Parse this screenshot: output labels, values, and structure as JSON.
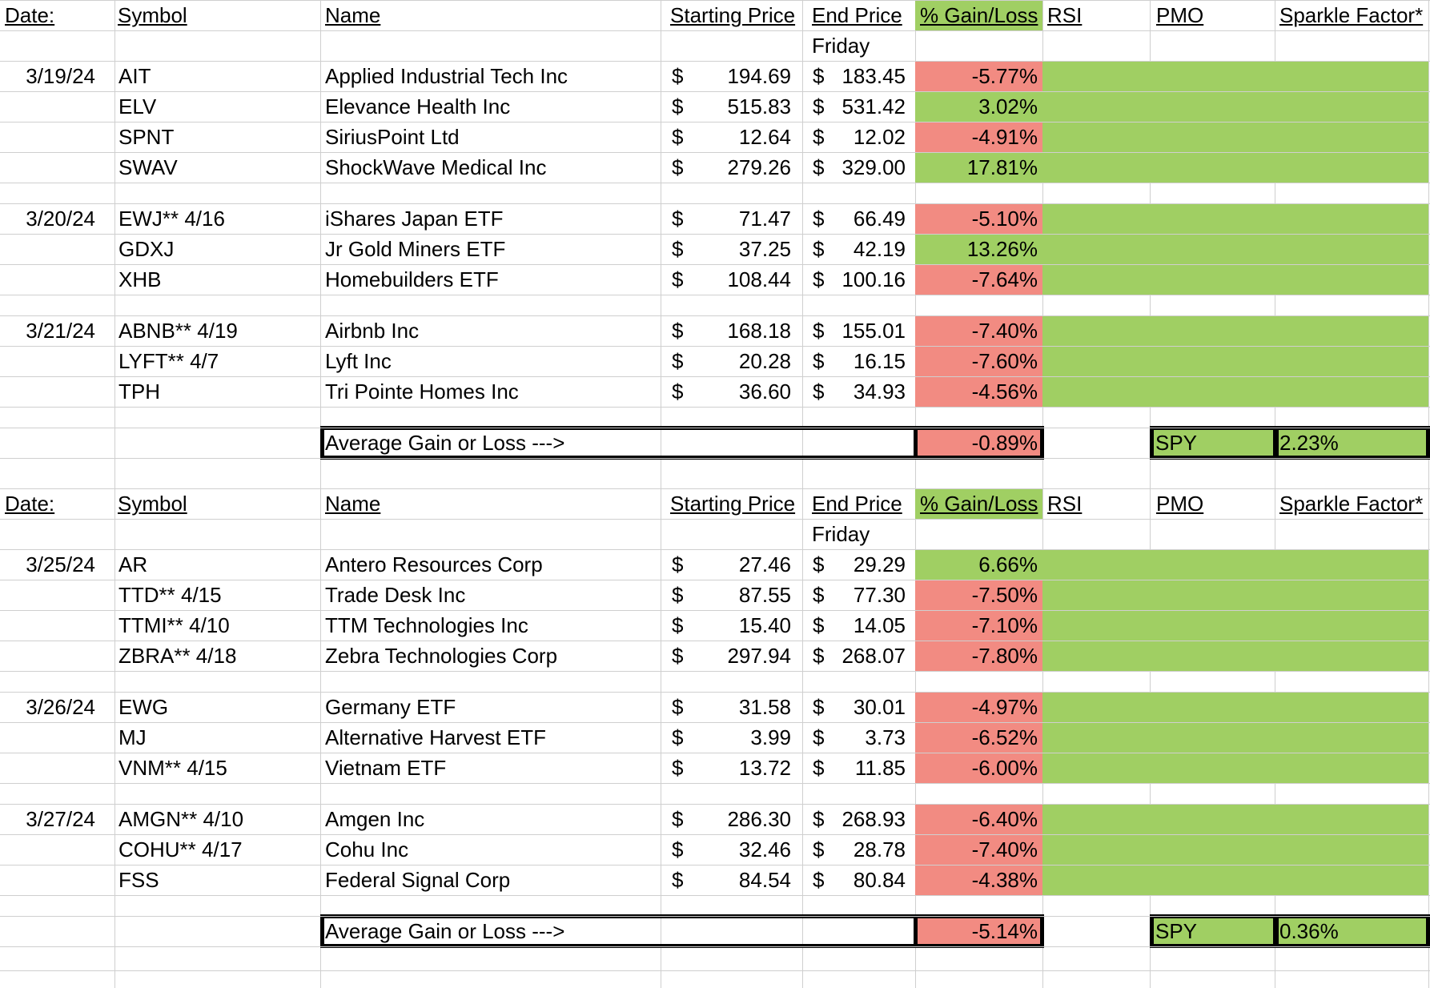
{
  "colors": {
    "loss": "#f28b82",
    "gain": "#a0cf63",
    "grid": "#cfcfcf"
  },
  "headers": {
    "date": "Date:",
    "symbol": "Symbol",
    "name": "Name",
    "start": "Starting Price",
    "end": "End Price",
    "pct": "% Gain/Loss",
    "rsi": "RSI",
    "pmo": "PMO",
    "sparkle": "Sparkle Factor*",
    "sub_end": "Friday"
  },
  "currency": "$",
  "sections": [
    {
      "groups": [
        {
          "date": "3/19/24",
          "rows": [
            {
              "symbol": "AIT",
              "name": "Applied Industrial Tech Inc",
              "start": "194.69",
              "end": "183.45",
              "pct": "-5.77%",
              "gain": false
            },
            {
              "symbol": "ELV",
              "name": "Elevance Health Inc",
              "start": "515.83",
              "end": "531.42",
              "pct": "3.02%",
              "gain": true
            },
            {
              "symbol": "SPNT",
              "name": "SiriusPoint Ltd",
              "start": "12.64",
              "end": "12.02",
              "pct": "-4.91%",
              "gain": false
            },
            {
              "symbol": "SWAV",
              "name": "ShockWave Medical Inc",
              "start": "279.26",
              "end": "329.00",
              "pct": "17.81%",
              "gain": true
            }
          ]
        },
        {
          "date": "3/20/24",
          "rows": [
            {
              "symbol": "EWJ** 4/16",
              "name": "iShares Japan ETF",
              "start": "71.47",
              "end": "66.49",
              "pct": "-5.10%",
              "gain": false
            },
            {
              "symbol": "GDXJ",
              "name": "Jr Gold Miners ETF",
              "start": "37.25",
              "end": "42.19",
              "pct": "13.26%",
              "gain": true
            },
            {
              "symbol": "XHB",
              "name": "Homebuilders ETF",
              "start": "108.44",
              "end": "100.16",
              "pct": "-7.64%",
              "gain": false
            }
          ]
        },
        {
          "date": "3/21/24",
          "rows": [
            {
              "symbol": "ABNB** 4/19",
              "name": "Airbnb Inc",
              "start": "168.18",
              "end": "155.01",
              "pct": "-7.40%",
              "gain": false
            },
            {
              "symbol": "LYFT** 4/7",
              "name": "Lyft Inc",
              "start": "20.28",
              "end": "16.15",
              "pct": "-7.60%",
              "gain": false
            },
            {
              "symbol": "TPH",
              "name": "Tri Pointe Homes Inc",
              "start": "36.60",
              "end": "34.93",
              "pct": "-4.56%",
              "gain": false
            }
          ]
        }
      ],
      "summary": {
        "label": "Average Gain or Loss --->",
        "avg": "-0.89%",
        "spy_label": "SPY",
        "spy_value": "2.23%"
      }
    },
    {
      "groups": [
        {
          "date": "3/25/24",
          "rows": [
            {
              "symbol": "AR",
              "name": "Antero Resources Corp",
              "start": "27.46",
              "end": "29.29",
              "pct": "6.66%",
              "gain": true
            },
            {
              "symbol": "TTD** 4/15",
              "name": "Trade Desk Inc",
              "start": "87.55",
              "end": "77.30",
              "pct": "-7.50%",
              "gain": false
            },
            {
              "symbol": "TTMI** 4/10",
              "name": "TTM Technologies Inc",
              "start": "15.40",
              "end": "14.05",
              "pct": "-7.10%",
              "gain": false
            },
            {
              "symbol": "ZBRA** 4/18",
              "name": "Zebra Technologies Corp",
              "start": "297.94",
              "end": "268.07",
              "pct": "-7.80%",
              "gain": false
            }
          ]
        },
        {
          "date": "3/26/24",
          "rows": [
            {
              "symbol": "EWG",
              "name": "Germany ETF",
              "start": "31.58",
              "end": "30.01",
              "pct": "-4.97%",
              "gain": false
            },
            {
              "symbol": "MJ",
              "name": "Alternative Harvest ETF",
              "start": "3.99",
              "end": "3.73",
              "pct": "-6.52%",
              "gain": false
            },
            {
              "symbol": "VNM** 4/15",
              "name": "Vietnam ETF",
              "start": "13.72",
              "end": "11.85",
              "pct": "-6.00%",
              "gain": false
            }
          ]
        },
        {
          "date": "3/27/24",
          "rows": [
            {
              "symbol": "AMGN** 4/10",
              "name": "Amgen Inc",
              "start": "286.30",
              "end": "268.93",
              "pct": "-6.40%",
              "gain": false
            },
            {
              "symbol": "COHU** 4/17",
              "name": "Cohu Inc",
              "start": "32.46",
              "end": "28.78",
              "pct": "-7.40%",
              "gain": false
            },
            {
              "symbol": "FSS",
              "name": "Federal Signal Corp",
              "start": "84.54",
              "end": "80.84",
              "pct": "-4.38%",
              "gain": false
            }
          ]
        }
      ],
      "summary": {
        "label": "Average Gain or Loss --->",
        "avg": "-5.14%",
        "spy_label": "SPY",
        "spy_value": "0.36%"
      }
    }
  ]
}
